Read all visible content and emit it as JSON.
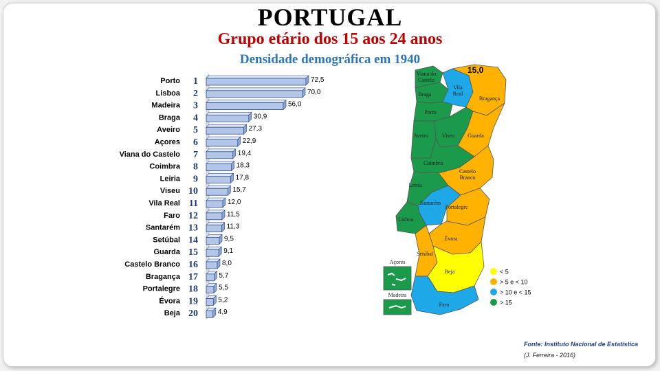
{
  "header": {
    "title": "PORTUGAL",
    "subtitle": "Grupo etário dos 15 aos 24 anos",
    "subtitle2": "Densidade demográfica em 1940"
  },
  "chart_data": {
    "type": "bar",
    "orientation": "horizontal",
    "categories": [
      "Porto",
      "Lisboa",
      "Madeira",
      "Braga",
      "Aveiro",
      "Açores",
      "Viana do Castelo",
      "Coimbra",
      "Leiria",
      "Viseu",
      "Vila Real",
      "Faro",
      "Santarém",
      "Setúbal",
      "Guarda",
      "Castelo Branco",
      "Bragança",
      "Portalegre",
      "Évora",
      "Beja"
    ],
    "ranks": [
      "1",
      "2",
      "3",
      "4",
      "5",
      "6",
      "7",
      "8",
      "9",
      "10",
      "11",
      "12",
      "13",
      "14",
      "15",
      "16",
      "17",
      "18",
      "19",
      "20"
    ],
    "values": [
      72.5,
      70.0,
      56.0,
      30.9,
      27.3,
      22.9,
      19.4,
      18.3,
      17.8,
      15.7,
      12.0,
      11.5,
      11.3,
      9.5,
      9.1,
      8.0,
      5.7,
      5.5,
      5.2,
      4.9
    ],
    "value_labels": [
      "72,5",
      "70,0",
      "56,0",
      "30,9",
      "27,3",
      "22,9",
      "19,4",
      "18,3",
      "17,8",
      "15,7",
      "12,0",
      "11,5",
      "11,3",
      "9,5",
      "9,1",
      "8,0",
      "5,7",
      "5,5",
      "5,2",
      "4,9"
    ],
    "bar_color": "#b4c6e7",
    "bar_edge": "#2f4f8f"
  },
  "map": {
    "reference_value": "15,0",
    "districts": [
      {
        "name": "Viana do Castelo",
        "label": "Viana do\nCastelo",
        "class": "> 15"
      },
      {
        "name": "Braga",
        "label": "Braga",
        "class": "> 15"
      },
      {
        "name": "Vila Real",
        "label": "Vila\nReal",
        "class": "> 10 e < 15"
      },
      {
        "name": "Bragança",
        "label": "Bragança",
        "class": "> 5 e < 10"
      },
      {
        "name": "Porto",
        "label": "Porto",
        "class": "> 15"
      },
      {
        "name": "Aveiro",
        "label": "Aveiro",
        "class": "> 15"
      },
      {
        "name": "Viseu",
        "label": "Viseu",
        "class": "> 15"
      },
      {
        "name": "Guarda",
        "label": "Guarda",
        "class": "> 5 e < 10"
      },
      {
        "name": "Coimbra",
        "label": "Coimbra",
        "class": "> 15"
      },
      {
        "name": "Castelo Branco",
        "label": "Castelo\nBranco",
        "class": "> 5 e < 10"
      },
      {
        "name": "Leiria",
        "label": "Leiria",
        "class": "> 15"
      },
      {
        "name": "Santarém",
        "label": "Santarém",
        "class": "> 10 e < 15"
      },
      {
        "name": "Portalegre",
        "label": "Portalegre",
        "class": "> 5 e < 10"
      },
      {
        "name": "Lisboa",
        "label": "Lisboa",
        "class": "> 15"
      },
      {
        "name": "Évora",
        "label": "Évora",
        "class": "> 5 e < 10"
      },
      {
        "name": "Setúbal",
        "label": "Setúbal",
        "class": "> 5 e < 10"
      },
      {
        "name": "Beja",
        "label": "Beja",
        "class": "< 5"
      },
      {
        "name": "Faro",
        "label": "Faro",
        "class": "> 10 e < 15"
      }
    ],
    "islands": [
      {
        "name": "Açores",
        "label": "Açores",
        "class": "> 15"
      },
      {
        "name": "Madeira",
        "label": "Madeira",
        "class": "> 15"
      }
    ],
    "legend": [
      {
        "label": "< 5",
        "color": "#ffff00"
      },
      {
        "label": "> 5 e < 10",
        "color": "#ffb300"
      },
      {
        "label": "> 10  e < 15",
        "color": "#1ea8e8"
      },
      {
        "label": "> 15",
        "color": "#1a9a4a"
      }
    ],
    "colors": {
      "< 5": "#ffff00",
      "> 5 e < 10": "#ffb300",
      "> 10 e < 15": "#1ea8e8",
      "> 15": "#1a9a4a"
    }
  },
  "footer": {
    "source": "Fonte: Instituto Nacional de Estatística",
    "author": "(J. Ferreira - 2016)"
  }
}
